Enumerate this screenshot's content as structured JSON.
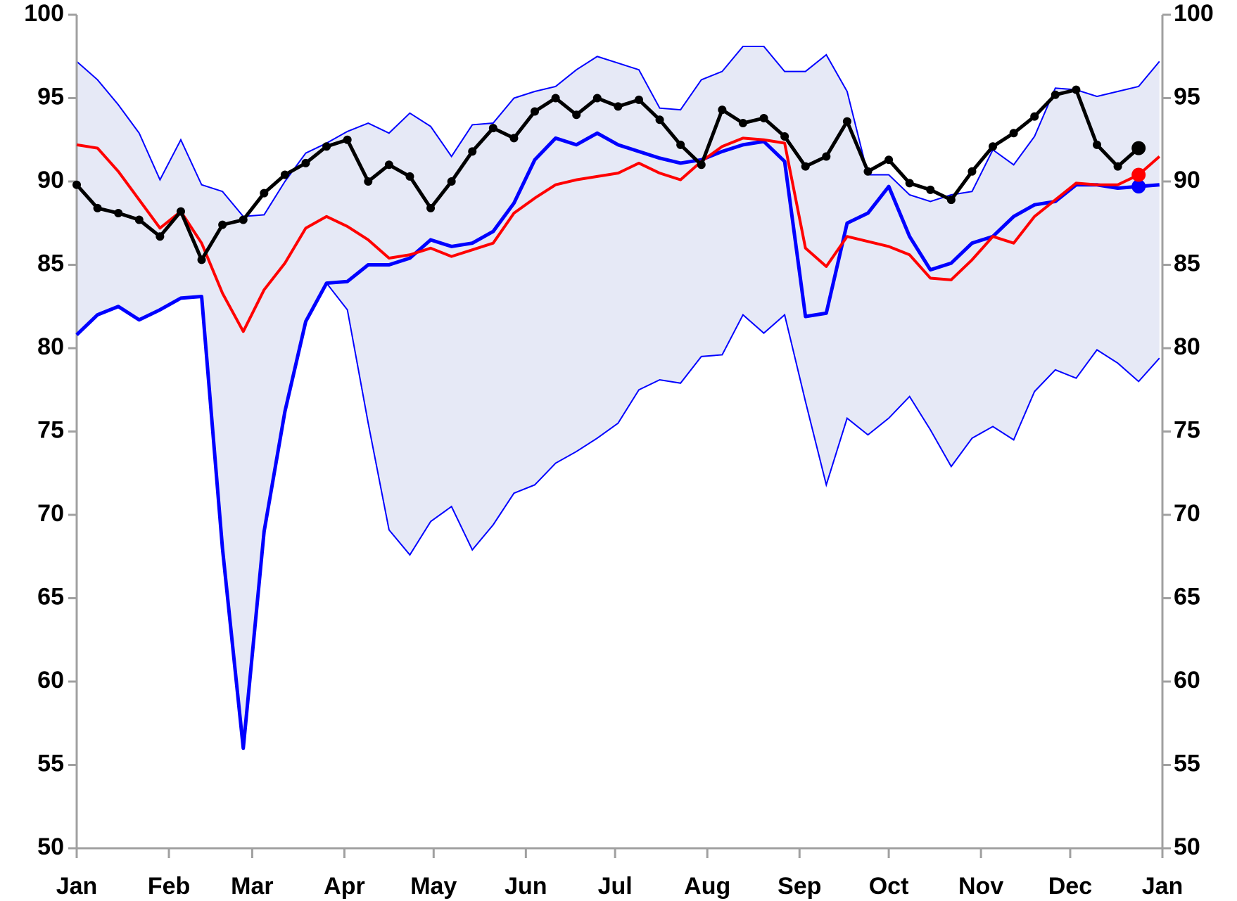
{
  "chart_data": {
    "type": "line",
    "x": [
      0,
      7,
      14,
      21,
      28,
      35,
      42,
      49,
      56,
      63,
      70,
      77,
      84,
      91,
      98,
      105,
      112,
      119,
      126,
      133,
      140,
      147,
      154,
      161,
      168,
      175,
      182,
      189,
      196,
      203,
      210,
      217,
      224,
      231,
      238,
      245,
      252,
      259,
      266,
      273,
      280,
      287,
      294,
      301,
      308,
      315,
      322,
      329,
      336,
      343,
      350,
      357,
      364
    ],
    "xlim": [
      0,
      365
    ],
    "xticks": [
      {
        "value": 0,
        "label": "Jan"
      },
      {
        "value": 31,
        "label": "Feb"
      },
      {
        "value": 59,
        "label": "Mar"
      },
      {
        "value": 90,
        "label": "Apr"
      },
      {
        "value": 120,
        "label": "May"
      },
      {
        "value": 151,
        "label": "Jun"
      },
      {
        "value": 181,
        "label": "Jul"
      },
      {
        "value": 212,
        "label": "Aug"
      },
      {
        "value": 243,
        "label": "Sep"
      },
      {
        "value": 273,
        "label": "Oct"
      },
      {
        "value": 304,
        "label": "Nov"
      },
      {
        "value": 334,
        "label": "Dec"
      },
      {
        "value": 365,
        "label": "Jan"
      }
    ],
    "ylim": [
      50,
      100
    ],
    "yticks": [
      50,
      55,
      60,
      65,
      70,
      75,
      80,
      85,
      90,
      95,
      100
    ],
    "y2lim": [
      50,
      100
    ],
    "y2ticks": [
      50,
      55,
      60,
      65,
      70,
      75,
      80,
      85,
      90,
      95,
      100
    ],
    "band": {
      "fill": "#e6e9f6",
      "color": "#0000ff",
      "upper": [
        97.2,
        96.1,
        94.6,
        92.9,
        90.1,
        92.5,
        89.8,
        89.4,
        87.9,
        88.0,
        90.0,
        91.7,
        92.3,
        93.0,
        93.5,
        92.9,
        94.1,
        93.3,
        91.5,
        93.4,
        93.5,
        95.0,
        95.4,
        95.7,
        96.7,
        97.5,
        97.1,
        96.7,
        94.4,
        94.3,
        96.1,
        96.6,
        98.1,
        98.1,
        96.6,
        96.6,
        97.6,
        95.4,
        90.4,
        90.4,
        89.2,
        88.8,
        89.2,
        89.4,
        91.9,
        91.0,
        92.7,
        95.6,
        95.5,
        95.1,
        95.4,
        95.7,
        97.2
      ],
      "lower": [
        80.8,
        82.0,
        82.5,
        81.7,
        82.3,
        83.0,
        83.1,
        68.0,
        56.0,
        69.0,
        76.2,
        81.6,
        83.9,
        82.3,
        75.5,
        69.1,
        67.6,
        69.6,
        70.5,
        67.9,
        69.4,
        71.3,
        71.8,
        73.1,
        73.8,
        74.6,
        75.5,
        77.5,
        78.1,
        77.9,
        79.5,
        79.6,
        82.0,
        80.9,
        82.0,
        76.8,
        71.8,
        75.8,
        74.8,
        75.8,
        77.1,
        75.1,
        72.9,
        74.6,
        75.3,
        74.5,
        77.4,
        78.7,
        78.2,
        79.9,
        79.1,
        78.0,
        79.4
      ]
    },
    "series": [
      {
        "color": "#0000ff",
        "width": 5,
        "markers": false,
        "values": [
          80.8,
          82.0,
          82.5,
          81.7,
          82.3,
          83.0,
          83.1,
          68.0,
          56.0,
          69.0,
          76.2,
          81.6,
          83.9,
          84.0,
          85.0,
          85.0,
          85.4,
          86.5,
          86.1,
          86.3,
          87.0,
          88.7,
          91.3,
          92.6,
          92.2,
          92.9,
          92.2,
          91.8,
          91.4,
          91.1,
          91.3,
          91.8,
          92.2,
          92.4,
          91.2,
          81.9,
          82.1,
          87.5,
          88.1,
          89.7,
          86.7,
          84.7,
          85.1,
          86.3,
          86.7,
          87.9,
          88.6,
          88.8,
          89.8,
          89.8,
          89.6,
          89.7,
          89.8
        ]
      },
      {
        "color": "#ff0000",
        "width": 4,
        "markers": false,
        "values": [
          92.2,
          92.0,
          90.6,
          88.9,
          87.2,
          88.2,
          86.3,
          83.3,
          81.0,
          83.5,
          85.1,
          87.2,
          87.9,
          87.3,
          86.5,
          85.4,
          85.6,
          86.0,
          85.5,
          85.9,
          86.3,
          88.1,
          89.0,
          89.8,
          90.1,
          90.3,
          90.5,
          91.1,
          90.5,
          90.1,
          91.2,
          92.1,
          92.6,
          92.5,
          92.3,
          86.0,
          84.9,
          86.7,
          86.4,
          86.1,
          85.6,
          84.2,
          84.1,
          85.3,
          86.7,
          86.3,
          87.9,
          88.9,
          89.9,
          89.8,
          89.8,
          90.4,
          91.5
        ]
      },
      {
        "color": "#000000",
        "width": 5,
        "markers": true,
        "values": [
          89.8,
          88.4,
          88.1,
          87.7,
          86.7,
          88.2,
          85.3,
          87.4,
          87.7,
          89.3,
          90.4,
          91.1,
          92.1,
          92.5,
          90.0,
          91.0,
          90.3,
          88.4,
          90.0,
          91.8,
          93.2,
          92.6,
          94.2,
          95.0,
          94.0,
          95.0,
          94.5,
          94.9,
          93.7,
          92.2,
          91.0,
          94.3,
          93.5,
          93.8,
          92.7,
          90.9,
          91.5,
          93.6,
          90.6,
          91.3,
          89.9,
          89.5,
          88.9,
          90.6,
          92.1,
          92.9,
          93.9,
          95.2,
          95.5,
          92.2,
          90.9,
          92.0,
          null
        ]
      }
    ],
    "highlight_points": [
      {
        "series": 0,
        "index": 51
      },
      {
        "series": 1,
        "index": 51
      },
      {
        "series": 2,
        "index": 51
      }
    ]
  }
}
